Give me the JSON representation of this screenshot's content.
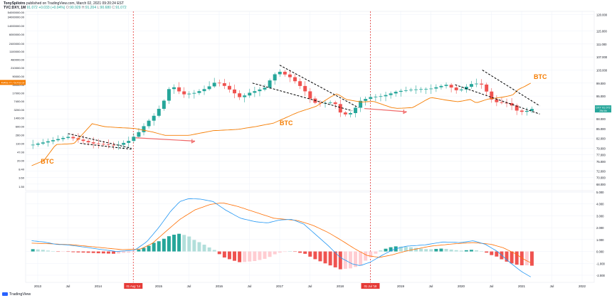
{
  "header": {
    "author": "TonySpilotro",
    "published": "published on TradingView.com, March 02, 2021 09:20:24 EST",
    "symbol": "TVC:DXY, 1M",
    "last": "91.072",
    "change": "+0.033 (+0.04%)",
    "o_label": "O:",
    "o": "90.929",
    "h_label": "H:",
    "h": "91.204",
    "l_label": "L:",
    "l": "90.680",
    "c_label": "C:",
    "c": "91.072"
  },
  "watermark": "TradingView",
  "colors": {
    "up": "#26a69a",
    "down": "#ef5350",
    "btc": "#f57c00",
    "macd": "#2196f3",
    "signal": "#ff6d00",
    "hist_up": "#26a69a",
    "hist_up_light": "#b2dfdb",
    "hist_down": "#ef5350",
    "hist_down_light": "#ffcdd2",
    "pivot_line": "#e53935",
    "arrow": "#f06767",
    "trend": "#000000"
  },
  "annotations": {
    "btc_labels": [
      "BTC",
      "BTC",
      "BTC"
    ],
    "date_markers": [
      "01 Aug '14",
      "01 Jul '18"
    ],
    "btc_axis_label": "49453.77 / 51702.02",
    "dxy_axis_label": "DXY 91.072",
    "dxy_axis_sublabel": "29d 6h"
  },
  "chart_data": [
    {
      "type": "candlestick",
      "title": "",
      "series": [
        {
          "name": "TVC:DXY, 1M",
          "type": "candlestick"
        },
        {
          "name": "",
          "type": "line",
          "scale": "log"
        }
      ],
      "right_axis": {
        "ticks": [
          "120.000",
          "115.000",
          "111.000",
          "107.000",
          "103.000",
          "99.000",
          "95.000",
          "91.000",
          "88.000",
          "85.000",
          "82.000",
          "79.000",
          "77.000",
          "75.000",
          "72.000",
          "70.000",
          "68.000"
        ],
        "range": [
          66,
          121
        ]
      },
      "left_axis": {
        "scale": "log",
        "ticks": [
          "54000000.00",
          "34000000.00",
          "14000000.00",
          "6000000.00",
          "2400000.00",
          "1100000.00",
          "480000.00",
          "210000.00",
          "90000.00",
          "39000.00",
          "17000.00",
          "7400.00",
          "3200.00",
          "1400.00",
          "600.00",
          "260.00",
          "110.00",
          "47.00",
          "20.00",
          "8.40",
          "3.60",
          "1.50"
        ],
        "range": [
          1,
          60000000
        ]
      },
      "x_axis": {
        "ticks": [
          "2013",
          "Jul",
          "2014",
          "Jul",
          "2015",
          "Jul",
          "2016",
          "Jul",
          "2017",
          "Jul",
          "2018",
          "Jul",
          "2019",
          "Jul",
          "2020",
          "Jul",
          "2021",
          "Jul",
          "2022"
        ],
        "range": [
          2012.8,
          2022.2
        ]
      },
      "dxy_anchors": [
        [
          2012.9,
          80.0
        ],
        [
          2013.5,
          82.5
        ],
        [
          2013.9,
          80.5
        ],
        [
          2014.3,
          79.8
        ],
        [
          2014.5,
          81.2
        ],
        [
          2014.65,
          83.5
        ],
        [
          2014.8,
          86.8
        ],
        [
          2014.95,
          89.5
        ],
        [
          2015.1,
          94.0
        ],
        [
          2015.2,
          98.5
        ],
        [
          2015.4,
          95.5
        ],
        [
          2015.6,
          96.0
        ],
        [
          2015.8,
          97.5
        ],
        [
          2015.95,
          99.5
        ],
        [
          2016.1,
          98.0
        ],
        [
          2016.35,
          94.5
        ],
        [
          2016.5,
          96.0
        ],
        [
          2016.75,
          97.5
        ],
        [
          2016.9,
          101.5
        ],
        [
          2017.0,
          102.5
        ],
        [
          2017.2,
          100.5
        ],
        [
          2017.4,
          97.0
        ],
        [
          2017.55,
          93.0
        ],
        [
          2017.7,
          92.8
        ],
        [
          2017.9,
          93.2
        ],
        [
          2018.0,
          90.0
        ],
        [
          2018.1,
          89.3
        ],
        [
          2018.2,
          90.0
        ],
        [
          2018.33,
          93.5
        ],
        [
          2018.5,
          94.7
        ],
        [
          2018.7,
          95.0
        ],
        [
          2018.95,
          96.5
        ],
        [
          2019.2,
          97.0
        ],
        [
          2019.5,
          97.3
        ],
        [
          2019.75,
          98.5
        ],
        [
          2019.95,
          96.5
        ],
        [
          2020.2,
          99.0
        ],
        [
          2020.35,
          98.5
        ],
        [
          2020.5,
          94.0
        ],
        [
          2020.6,
          93.0
        ],
        [
          2020.8,
          92.8
        ],
        [
          2020.95,
          90.0
        ],
        [
          2021.1,
          90.5
        ],
        [
          2021.17,
          91.07
        ]
      ],
      "btc_anchors": [
        [
          2012.9,
          12
        ],
        [
          2013.1,
          20
        ],
        [
          2013.3,
          100
        ],
        [
          2013.6,
          110
        ],
        [
          2013.9,
          800
        ],
        [
          2014.1,
          600
        ],
        [
          2014.3,
          550
        ],
        [
          2014.6,
          500
        ],
        [
          2014.9,
          350
        ],
        [
          2015.1,
          250
        ],
        [
          2015.5,
          250
        ],
        [
          2015.9,
          400
        ],
        [
          2016.3,
          450
        ],
        [
          2016.6,
          600
        ],
        [
          2016.9,
          850
        ],
        [
          2017.3,
          2500
        ],
        [
          2017.6,
          4500
        ],
        [
          2017.85,
          12000
        ],
        [
          2017.95,
          16000
        ],
        [
          2018.1,
          9000
        ],
        [
          2018.35,
          7000
        ],
        [
          2018.55,
          7500
        ],
        [
          2018.85,
          4000
        ],
        [
          2018.95,
          3700
        ],
        [
          2019.2,
          4000
        ],
        [
          2019.4,
          8000
        ],
        [
          2019.5,
          11000
        ],
        [
          2019.75,
          8500
        ],
        [
          2019.95,
          7200
        ],
        [
          2020.15,
          9000
        ],
        [
          2020.25,
          6400
        ],
        [
          2020.45,
          9500
        ],
        [
          2020.7,
          11500
        ],
        [
          2020.85,
          14000
        ],
        [
          2020.95,
          25000
        ],
        [
          2021.05,
          33000
        ],
        [
          2021.17,
          49453
        ]
      ]
    },
    {
      "type": "line",
      "title": "",
      "series": [
        {
          "name": "MACD",
          "color": "#2196f3"
        },
        {
          "name": "Signal",
          "color": "#ff6d00"
        },
        {
          "name": "Histogram",
          "type": "bar"
        }
      ],
      "y_axis": {
        "ticks": [
          "5.000",
          "4.000",
          "3.000",
          "2.000",
          "1.000",
          "0.000",
          "-1.000",
          "-2.000"
        ],
        "range": [
          -2.6,
          5.0
        ]
      },
      "macd_anchors": [
        [
          2012.9,
          0.9
        ],
        [
          2013.1,
          0.8
        ],
        [
          2013.3,
          0.6
        ],
        [
          2013.5,
          0.55
        ],
        [
          2013.8,
          0.35
        ],
        [
          2014.0,
          0.2
        ],
        [
          2014.3,
          0.0
        ],
        [
          2014.6,
          0.1
        ],
        [
          2014.8,
          0.8
        ],
        [
          2015.0,
          2.0
        ],
        [
          2015.2,
          3.4
        ],
        [
          2015.35,
          4.2
        ],
        [
          2015.5,
          4.45
        ],
        [
          2015.7,
          4.4
        ],
        [
          2015.9,
          4.2
        ],
        [
          2016.1,
          3.5
        ],
        [
          2016.35,
          2.8
        ],
        [
          2016.6,
          2.5
        ],
        [
          2016.8,
          2.4
        ],
        [
          2017.0,
          2.65
        ],
        [
          2017.2,
          2.7
        ],
        [
          2017.4,
          2.3
        ],
        [
          2017.6,
          1.4
        ],
        [
          2017.8,
          0.5
        ],
        [
          2018.0,
          -0.5
        ],
        [
          2018.2,
          -1.05
        ],
        [
          2018.33,
          -1.2
        ],
        [
          2018.5,
          -0.9
        ],
        [
          2018.7,
          -0.3
        ],
        [
          2018.9,
          0.2
        ],
        [
          2019.1,
          0.45
        ],
        [
          2019.4,
          0.55
        ],
        [
          2019.7,
          0.8
        ],
        [
          2020.0,
          0.75
        ],
        [
          2020.2,
          0.9
        ],
        [
          2020.4,
          0.6
        ],
        [
          2020.6,
          0.0
        ],
        [
          2020.8,
          -0.9
        ],
        [
          2021.0,
          -1.7
        ],
        [
          2021.17,
          -2.2
        ]
      ],
      "signal_anchors": [
        [
          2012.9,
          0.7
        ],
        [
          2013.2,
          0.65
        ],
        [
          2013.6,
          0.55
        ],
        [
          2014.0,
          0.35
        ],
        [
          2014.4,
          0.15
        ],
        [
          2014.7,
          0.2
        ],
        [
          2014.9,
          0.7
        ],
        [
          2015.1,
          1.6
        ],
        [
          2015.35,
          2.7
        ],
        [
          2015.6,
          3.5
        ],
        [
          2015.85,
          3.95
        ],
        [
          2016.05,
          4.1
        ],
        [
          2016.3,
          3.8
        ],
        [
          2016.6,
          3.3
        ],
        [
          2016.9,
          2.8
        ],
        [
          2017.1,
          2.7
        ],
        [
          2017.3,
          2.6
        ],
        [
          2017.55,
          2.2
        ],
        [
          2017.8,
          1.6
        ],
        [
          2018.0,
          1.0
        ],
        [
          2018.25,
          0.2
        ],
        [
          2018.45,
          -0.35
        ],
        [
          2018.65,
          -0.5
        ],
        [
          2018.85,
          -0.3
        ],
        [
          2019.1,
          0.05
        ],
        [
          2019.5,
          0.45
        ],
        [
          2019.9,
          0.65
        ],
        [
          2020.2,
          0.75
        ],
        [
          2020.5,
          0.6
        ],
        [
          2020.7,
          0.3
        ],
        [
          2020.9,
          -0.2
        ],
        [
          2021.05,
          -0.7
        ],
        [
          2021.17,
          -1.0
        ]
      ]
    }
  ]
}
